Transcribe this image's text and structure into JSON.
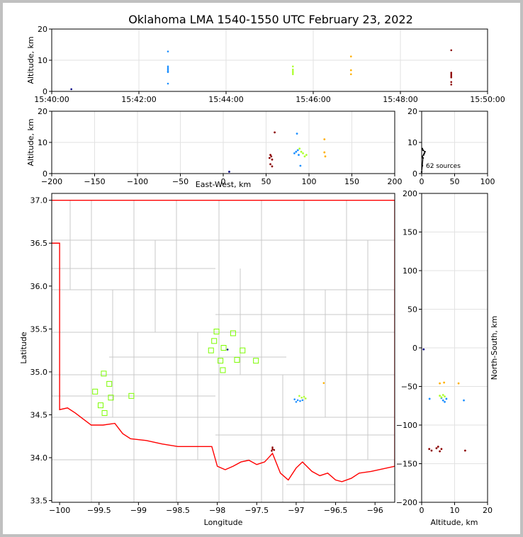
{
  "title": "Oklahoma LMA 1540-1550 UTC February 23, 2022",
  "source_count_label": "62 sources",
  "chart_data": [
    {
      "id": "time-height",
      "type": "scatter",
      "xlabel": "",
      "ylabel": "Altitude, km",
      "x_ticks": [
        "15:40:00",
        "15:42:00",
        "15:44:00",
        "15:46:00",
        "15:48:00",
        "15:50:00"
      ],
      "xlim": [
        "15:40:00",
        "15:50:00"
      ],
      "ylim": [
        0,
        20
      ],
      "y_ticks": [
        0,
        10,
        20
      ],
      "grid": true,
      "points": [
        {
          "t": "15:40:27",
          "alt": 0.7,
          "color": "#000080"
        },
        {
          "t": "15:42:40",
          "alt": 12.8,
          "color": "#1e90ff"
        },
        {
          "t": "15:42:40",
          "alt": 8.0,
          "color": "#1e90ff"
        },
        {
          "t": "15:42:40",
          "alt": 7.5,
          "color": "#1e90ff"
        },
        {
          "t": "15:42:40",
          "alt": 7.0,
          "color": "#1e90ff"
        },
        {
          "t": "15:42:40",
          "alt": 6.5,
          "color": "#1e90ff"
        },
        {
          "t": "15:42:40",
          "alt": 6.2,
          "color": "#1e90ff"
        },
        {
          "t": "15:42:40",
          "alt": 2.5,
          "color": "#1e90ff"
        },
        {
          "t": "15:45:32",
          "alt": 8.0,
          "color": "#adff2f"
        },
        {
          "t": "15:45:32",
          "alt": 7.0,
          "color": "#adff2f"
        },
        {
          "t": "15:45:32",
          "alt": 6.5,
          "color": "#adff2f"
        },
        {
          "t": "15:45:32",
          "alt": 6.0,
          "color": "#adff2f"
        },
        {
          "t": "15:45:32",
          "alt": 5.5,
          "color": "#adff2f"
        },
        {
          "t": "15:46:52",
          "alt": 11.2,
          "color": "#ffb000"
        },
        {
          "t": "15:46:52",
          "alt": 6.8,
          "color": "#ffb000"
        },
        {
          "t": "15:46:52",
          "alt": 5.5,
          "color": "#ffb000"
        },
        {
          "t": "15:49:10",
          "alt": 13.2,
          "color": "#8b0000"
        },
        {
          "t": "15:49:10",
          "alt": 6.0,
          "color": "#8b0000"
        },
        {
          "t": "15:49:10",
          "alt": 5.5,
          "color": "#8b0000"
        },
        {
          "t": "15:49:10",
          "alt": 5.0,
          "color": "#8b0000"
        },
        {
          "t": "15:49:10",
          "alt": 4.5,
          "color": "#8b0000"
        },
        {
          "t": "15:49:10",
          "alt": 3.0,
          "color": "#8b0000"
        },
        {
          "t": "15:49:10",
          "alt": 2.2,
          "color": "#8b0000"
        }
      ]
    },
    {
      "id": "ew-height",
      "type": "scatter",
      "xlabel": "East-West, km",
      "ylabel": "Altitude, km",
      "xlim": [
        -200,
        200
      ],
      "x_ticks": [
        -200,
        -150,
        -100,
        -50,
        0,
        50,
        100,
        150,
        200
      ],
      "ylim": [
        0,
        20
      ],
      "y_ticks": [
        0,
        10,
        20
      ],
      "grid": true,
      "points": [
        {
          "x": 7,
          "alt": 0.6,
          "color": "#000080"
        },
        {
          "x": 86,
          "alt": 12.8,
          "color": "#1e90ff"
        },
        {
          "x": 83,
          "alt": 6.5,
          "color": "#1e90ff"
        },
        {
          "x": 85,
          "alt": 7.0,
          "color": "#1e90ff"
        },
        {
          "x": 88,
          "alt": 6.0,
          "color": "#1e90ff"
        },
        {
          "x": 90,
          "alt": 2.5,
          "color": "#1e90ff"
        },
        {
          "x": 87,
          "alt": 7.5,
          "color": "#1e90ff"
        },
        {
          "x": 89,
          "alt": 8.0,
          "color": "#adff2f"
        },
        {
          "x": 91,
          "alt": 7.0,
          "color": "#adff2f"
        },
        {
          "x": 93,
          "alt": 6.5,
          "color": "#adff2f"
        },
        {
          "x": 95,
          "alt": 5.5,
          "color": "#adff2f"
        },
        {
          "x": 97,
          "alt": 6.0,
          "color": "#adff2f"
        },
        {
          "x": 118,
          "alt": 11.0,
          "color": "#ffb000"
        },
        {
          "x": 118,
          "alt": 6.8,
          "color": "#ffb000"
        },
        {
          "x": 119,
          "alt": 5.5,
          "color": "#ffb000"
        },
        {
          "x": 60,
          "alt": 13.2,
          "color": "#8b0000"
        },
        {
          "x": 55,
          "alt": 6.0,
          "color": "#8b0000"
        },
        {
          "x": 56,
          "alt": 5.5,
          "color": "#8b0000"
        },
        {
          "x": 54,
          "alt": 5.0,
          "color": "#8b0000"
        },
        {
          "x": 57,
          "alt": 4.5,
          "color": "#8b0000"
        },
        {
          "x": 55,
          "alt": 3.0,
          "color": "#8b0000"
        },
        {
          "x": 57,
          "alt": 2.3,
          "color": "#8b0000"
        }
      ]
    },
    {
      "id": "altitude-histogram",
      "type": "line",
      "xlim": [
        0,
        100
      ],
      "x_ticks": [
        0,
        50,
        100
      ],
      "ylim": [
        0,
        20
      ],
      "y_ticks": [
        0,
        10,
        20
      ],
      "grid": true,
      "points": [
        {
          "count": 0,
          "alt": 0.5
        },
        {
          "count": 1,
          "alt": 2.5
        },
        {
          "count": 2,
          "alt": 5.0
        },
        {
          "count": 1,
          "alt": 5.5
        },
        {
          "count": 3,
          "alt": 6.0
        },
        {
          "count": 4,
          "alt": 6.5
        },
        {
          "count": 5,
          "alt": 7.0
        },
        {
          "count": 2,
          "alt": 7.5
        },
        {
          "count": 1,
          "alt": 8.0
        }
      ]
    },
    {
      "id": "plan-view",
      "type": "scatter",
      "xlabel": "Longitude",
      "ylabel": "Latitude",
      "xlim": [
        -100.1,
        -95.75
      ],
      "x_ticks": [
        -100.0,
        -99.5,
        -99.0,
        -98.5,
        -98.0,
        -97.5,
        -97.0,
        -96.5,
        -96.0
      ],
      "ylim": [
        33.48,
        37.08
      ],
      "y_ticks": [
        33.5,
        34.0,
        34.5,
        35.0,
        35.5,
        36.0,
        36.5,
        37.0
      ],
      "stations": [
        {
          "lon": -98.01,
          "lat": 35.47
        },
        {
          "lon": -97.8,
          "lat": 35.45
        },
        {
          "lon": -98.04,
          "lat": 35.36
        },
        {
          "lon": -98.08,
          "lat": 35.25
        },
        {
          "lon": -97.92,
          "lat": 35.28
        },
        {
          "lon": -97.68,
          "lat": 35.25
        },
        {
          "lon": -97.96,
          "lat": 35.13
        },
        {
          "lon": -97.75,
          "lat": 35.14
        },
        {
          "lon": -97.51,
          "lat": 35.13
        },
        {
          "lon": -97.93,
          "lat": 35.02
        },
        {
          "lon": -99.44,
          "lat": 34.98
        },
        {
          "lon": -99.37,
          "lat": 34.86
        },
        {
          "lon": -99.55,
          "lat": 34.77
        },
        {
          "lon": -99.35,
          "lat": 34.7
        },
        {
          "lon": -99.09,
          "lat": 34.72
        },
        {
          "lon": -99.48,
          "lat": 34.61
        },
        {
          "lon": -99.43,
          "lat": 34.52
        }
      ],
      "points": [
        {
          "lon": -97.87,
          "lat": 35.26,
          "color": "#000080"
        },
        {
          "lon": -97.02,
          "lat": 34.68,
          "color": "#1e90ff"
        },
        {
          "lon": -96.98,
          "lat": 34.67,
          "color": "#1e90ff"
        },
        {
          "lon": -96.95,
          "lat": 34.66,
          "color": "#1e90ff"
        },
        {
          "lon": -97.0,
          "lat": 34.65,
          "color": "#1e90ff"
        },
        {
          "lon": -96.92,
          "lat": 34.67,
          "color": "#1e90ff"
        },
        {
          "lon": -96.96,
          "lat": 34.72,
          "color": "#adff2f"
        },
        {
          "lon": -96.93,
          "lat": 34.7,
          "color": "#adff2f"
        },
        {
          "lon": -96.9,
          "lat": 34.71,
          "color": "#adff2f"
        },
        {
          "lon": -96.88,
          "lat": 34.69,
          "color": "#adff2f"
        },
        {
          "lon": -96.65,
          "lat": 34.87,
          "color": "#ffb000"
        },
        {
          "lon": -97.3,
          "lat": 34.1,
          "color": "#8b0000"
        },
        {
          "lon": -97.31,
          "lat": 34.08,
          "color": "#8b0000"
        },
        {
          "lon": -97.28,
          "lat": 34.09,
          "color": "#8b0000"
        },
        {
          "lon": -97.3,
          "lat": 34.12,
          "color": "#8b0000"
        }
      ]
    },
    {
      "id": "ns-height",
      "type": "scatter",
      "xlabel": "Altitude, km",
      "ylabel": "North-South, km",
      "xlim": [
        0,
        20
      ],
      "x_ticks": [
        0,
        10,
        20
      ],
      "ylim": [
        -200,
        200
      ],
      "y_ticks": [
        -200,
        -150,
        -100,
        -50,
        0,
        50,
        100,
        150,
        200
      ],
      "grid": true,
      "points": [
        {
          "alt": 0.6,
          "y": -2,
          "color": "#000080"
        },
        {
          "alt": 2.4,
          "y": -66,
          "color": "#1e90ff"
        },
        {
          "alt": 6.5,
          "y": -68,
          "color": "#1e90ff"
        },
        {
          "alt": 7.0,
          "y": -70,
          "color": "#1e90ff"
        },
        {
          "alt": 7.5,
          "y": -66,
          "color": "#1e90ff"
        },
        {
          "alt": 6.0,
          "y": -65,
          "color": "#1e90ff"
        },
        {
          "alt": 12.8,
          "y": -68,
          "color": "#1e90ff"
        },
        {
          "alt": 5.5,
          "y": -62,
          "color": "#adff2f"
        },
        {
          "alt": 6.0,
          "y": -64,
          "color": "#adff2f"
        },
        {
          "alt": 6.5,
          "y": -61,
          "color": "#adff2f"
        },
        {
          "alt": 7.0,
          "y": -63,
          "color": "#adff2f"
        },
        {
          "alt": 5.5,
          "y": -46,
          "color": "#ffb000"
        },
        {
          "alt": 6.8,
          "y": -45,
          "color": "#ffb000"
        },
        {
          "alt": 11.2,
          "y": -46,
          "color": "#ffb000"
        },
        {
          "alt": 2.3,
          "y": -131,
          "color": "#8b0000"
        },
        {
          "alt": 3.0,
          "y": -133,
          "color": "#8b0000"
        },
        {
          "alt": 4.5,
          "y": -130,
          "color": "#8b0000"
        },
        {
          "alt": 5.0,
          "y": -128,
          "color": "#8b0000"
        },
        {
          "alt": 5.5,
          "y": -134,
          "color": "#8b0000"
        },
        {
          "alt": 6.0,
          "y": -131,
          "color": "#8b0000"
        },
        {
          "alt": 13.2,
          "y": -133,
          "color": "#8b0000"
        }
      ]
    }
  ]
}
